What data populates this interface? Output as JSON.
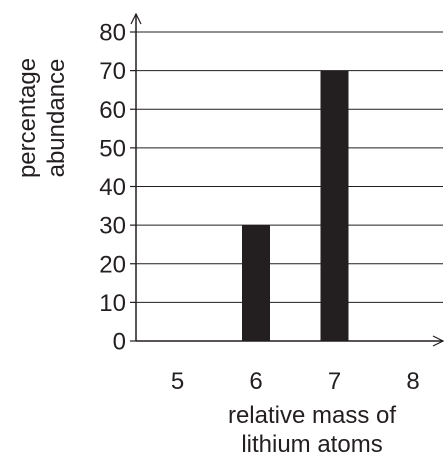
{
  "chart_data": {
    "type": "bar",
    "categories": [
      "5",
      "6",
      "7",
      "8"
    ],
    "values": [
      0,
      30,
      70,
      0
    ],
    "title": "",
    "xlabel": "relative mass of lithium atoms",
    "xlabel_lines": [
      "relative mass of",
      "lithium atoms"
    ],
    "ylabel": "percentage abundance",
    "ylabel_lines": [
      "percentage",
      "abundance"
    ],
    "yticks": [
      "0",
      "10",
      "20",
      "30",
      "40",
      "50",
      "60",
      "70",
      "80"
    ],
    "ylim": [
      0,
      80
    ],
    "grid": true,
    "colors": {
      "bar": "#231f20",
      "grid": "#231f20",
      "axis": "#231f20"
    }
  }
}
